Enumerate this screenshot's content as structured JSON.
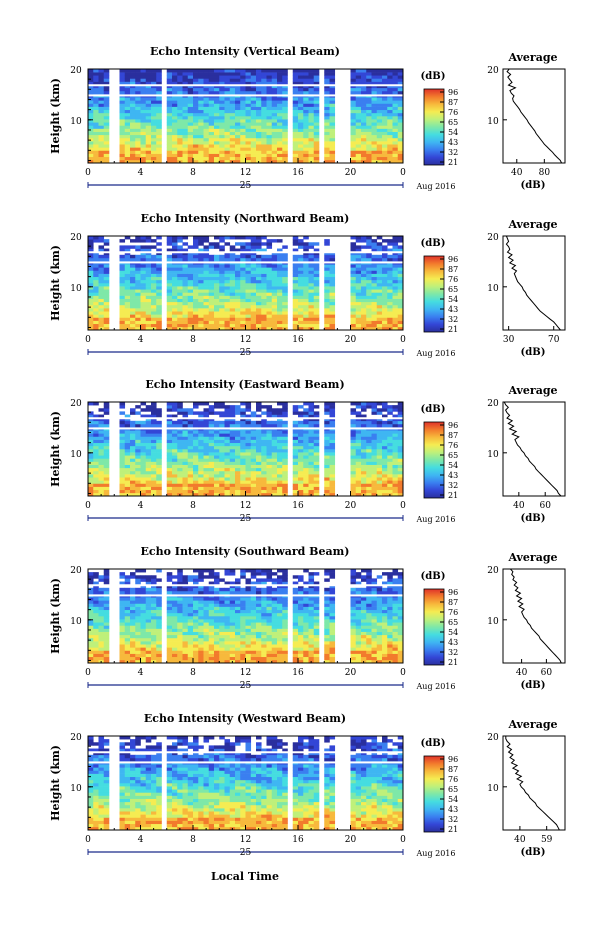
{
  "figure": {
    "xlabel": "Local Time",
    "date_label": "Aug 2016",
    "day_label": "25",
    "avg_title": "Average",
    "cb_unit": "(dB)",
    "avg_unit": "(dB)",
    "ylabel": "Height (km)"
  },
  "colormap": [
    "#2a2f9e",
    "#3346d6",
    "#3a7ff0",
    "#3fb6f2",
    "#45dde0",
    "#7ee8a8",
    "#bff07a",
    "#f5ec52",
    "#f7b93c",
    "#f27a2c",
    "#e0332a"
  ],
  "chart_data": [
    {
      "type": "heatmap",
      "title": "Echo Intensity (Vertical Beam)",
      "x_ticks": [
        "0",
        "4",
        "8",
        "12",
        "16",
        "20",
        "0"
      ],
      "y_ticks": [
        "20",
        "10"
      ],
      "xlim": [
        0,
        24
      ],
      "ylim": [
        1.5,
        20
      ],
      "colorbar_ticks": [
        "96",
        "87",
        "76",
        "65",
        "54",
        "43",
        "32",
        "21"
      ],
      "gap_hours": [
        2.0,
        5.8,
        15.3,
        17.8,
        19.0,
        19.6
      ],
      "avg": {
        "x_ticks": [
          "40",
          "80"
        ],
        "xlim": [
          20,
          110
        ],
        "x_values": [
          105,
          103,
          99,
          95,
          92,
          88,
          84,
          80,
          77,
          74,
          71,
          68,
          66,
          63,
          60,
          57,
          55,
          52,
          49,
          46,
          44,
          41,
          38,
          35,
          34,
          36,
          32,
          30,
          38,
          28,
          33,
          30,
          27,
          31,
          26,
          29
        ]
      }
    },
    {
      "type": "heatmap",
      "title": "Echo Intensity (Northward Beam)",
      "x_ticks": [
        "0",
        "4",
        "8",
        "12",
        "16",
        "20",
        "0"
      ],
      "y_ticks": [
        "20",
        "10"
      ],
      "xlim": [
        0,
        24
      ],
      "ylim": [
        1.5,
        20
      ],
      "colorbar_ticks": [
        "96",
        "87",
        "76",
        "65",
        "54",
        "43",
        "32",
        "21"
      ],
      "gap_hours": [
        2.0,
        5.8,
        15.3,
        17.8,
        19.0,
        19.6
      ],
      "avg": {
        "x_ticks": [
          "30",
          "70"
        ],
        "xlim": [
          25,
          80
        ],
        "x_values": [
          76,
          74,
          72,
          70,
          67,
          64,
          61,
          58,
          56,
          54,
          52,
          50,
          48,
          46,
          45,
          43,
          42,
          40,
          38,
          37,
          36,
          35,
          37,
          33,
          36,
          31,
          34,
          30,
          33,
          29,
          31,
          30,
          28,
          30,
          29,
          28
        ]
      }
    },
    {
      "type": "heatmap",
      "title": "Echo Intensity (Eastward Beam)",
      "x_ticks": [
        "0",
        "4",
        "8",
        "12",
        "16",
        "20",
        "0"
      ],
      "y_ticks": [
        "20",
        "10"
      ],
      "xlim": [
        0,
        24
      ],
      "ylim": [
        1.5,
        20
      ],
      "colorbar_ticks": [
        "96",
        "87",
        "76",
        "65",
        "54",
        "43",
        "32",
        "21"
      ],
      "gap_hours": [
        2.0,
        5.8,
        15.3,
        17.8,
        19.0,
        19.6
      ],
      "avg": {
        "x_ticks": [
          "40",
          "60"
        ],
        "xlim": [
          28,
          75
        ],
        "x_values": [
          72,
          70,
          69,
          67,
          65,
          63,
          61,
          59,
          57,
          55,
          53,
          52,
          50,
          48,
          47,
          45,
          44,
          42,
          41,
          39,
          38,
          37,
          40,
          35,
          38,
          33,
          36,
          32,
          35,
          31,
          33,
          31,
          30,
          32,
          30,
          29
        ]
      }
    },
    {
      "type": "heatmap",
      "title": "Echo Intensity (Southward Beam)",
      "x_ticks": [
        "0",
        "4",
        "8",
        "12",
        "16",
        "20",
        "0"
      ],
      "y_ticks": [
        "20",
        "10"
      ],
      "xlim": [
        0,
        24
      ],
      "ylim": [
        1.5,
        20
      ],
      "colorbar_ticks": [
        "96",
        "87",
        "76",
        "65",
        "54",
        "43",
        "32",
        "21"
      ],
      "gap_hours": [
        2.0,
        5.8,
        15.3,
        17.8,
        19.0,
        19.6
      ],
      "avg": {
        "x_ticks": [
          "40",
          "60"
        ],
        "xlim": [
          25,
          75
        ],
        "x_values": [
          72,
          71,
          69,
          67,
          65,
          63,
          61,
          59,
          57,
          55,
          54,
          52,
          50,
          48,
          47,
          45,
          44,
          42,
          41,
          40,
          42,
          38,
          41,
          37,
          40,
          36,
          39,
          35,
          37,
          34,
          36,
          33,
          34,
          32,
          33,
          31
        ]
      }
    },
    {
      "type": "heatmap",
      "title": "Echo Intensity (Westward Beam)",
      "x_ticks": [
        "0",
        "4",
        "8",
        "12",
        "16",
        "20",
        "0"
      ],
      "y_ticks": [
        "20",
        "10"
      ],
      "xlim": [
        0,
        24
      ],
      "ylim": [
        1.5,
        20
      ],
      "colorbar_ticks": [
        "96",
        "87",
        "76",
        "65",
        "54",
        "43",
        "32",
        "21"
      ],
      "gap_hours": [
        2.0,
        5.8,
        15.3,
        17.8,
        19.0,
        19.6
      ],
      "avg": {
        "x_ticks": [
          "40",
          "59"
        ],
        "xlim": [
          28,
          72
        ],
        "x_values": [
          68,
          67,
          66,
          64,
          62,
          60,
          58,
          56,
          54,
          52,
          51,
          49,
          47,
          46,
          44,
          43,
          41,
          40,
          42,
          38,
          41,
          37,
          39,
          35,
          38,
          34,
          36,
          33,
          35,
          32,
          34,
          31,
          33,
          31,
          30,
          30
        ]
      }
    }
  ]
}
